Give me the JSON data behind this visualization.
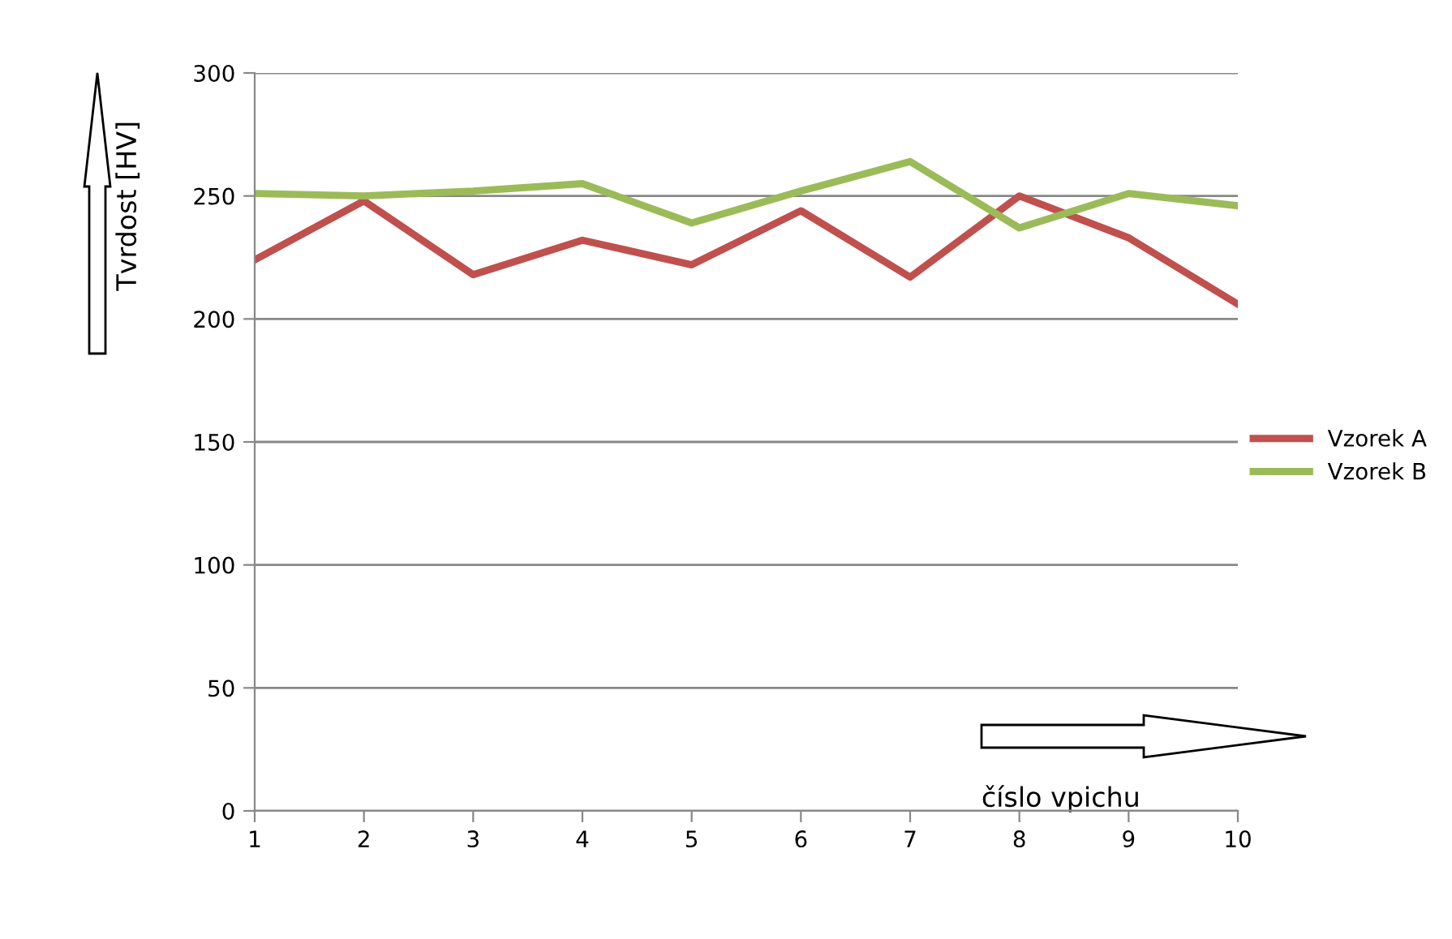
{
  "chart_data": {
    "type": "line",
    "xlabel": "číslo vpichu",
    "ylabel": "Tvrdost [HV]",
    "x": [
      1,
      2,
      3,
      4,
      5,
      6,
      7,
      8,
      9,
      10
    ],
    "series": [
      {
        "name": "Vzorek A",
        "color": "#c0504d",
        "values": [
          224,
          248,
          218,
          232,
          222,
          244,
          217,
          250,
          233,
          206
        ]
      },
      {
        "name": "Vzorek B",
        "color": "#9bbb59",
        "values": [
          251,
          250,
          252,
          255,
          239,
          252,
          264,
          237,
          251,
          246
        ]
      }
    ],
    "xlim": [
      1,
      10
    ],
    "xticks": [
      1,
      2,
      3,
      4,
      5,
      6,
      7,
      8,
      9,
      10
    ],
    "ylim": [
      0,
      300
    ],
    "yticks": [
      0,
      50,
      100,
      150,
      200,
      250,
      300
    ],
    "grid": "y",
    "legend": "right",
    "marker": "none",
    "line_style": "solid"
  }
}
